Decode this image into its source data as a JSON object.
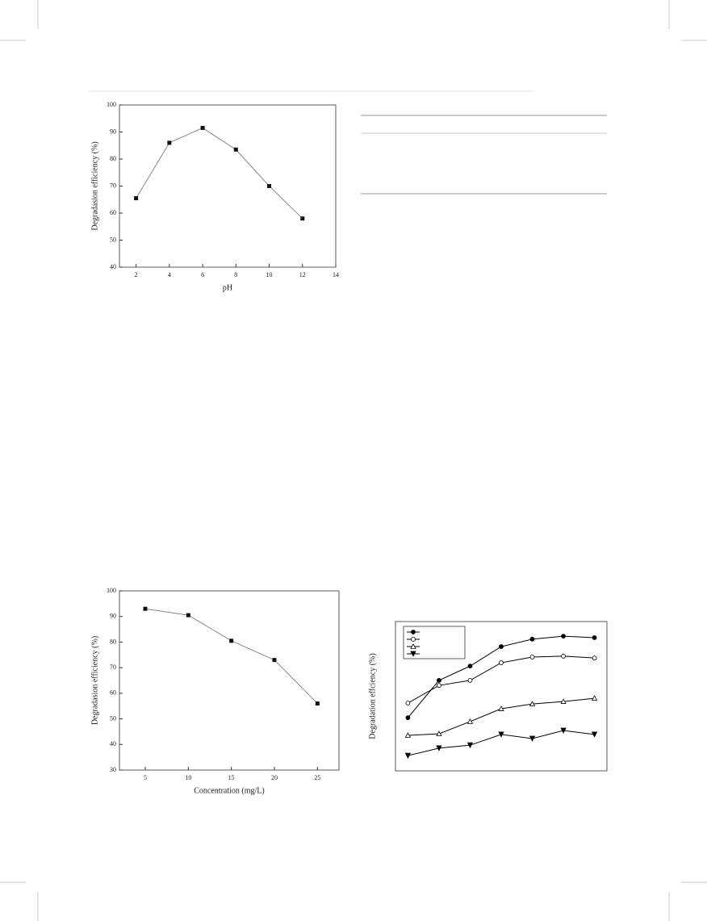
{
  "chart_data": [
    {
      "type": "line",
      "x_label": "pH",
      "y_label": "Degradasion efficiency (%)",
      "x": [
        2,
        4,
        6,
        8,
        10,
        12
      ],
      "values": [
        65.5,
        86,
        91.5,
        83.5,
        70,
        58
      ],
      "color": "#888888",
      "marker": "square",
      "xlim": [
        1,
        14
      ],
      "xticks": [
        2,
        4,
        6,
        8,
        10,
        12,
        14
      ],
      "ylim": [
        40,
        100
      ],
      "yticks": [
        40,
        50,
        60,
        70,
        80,
        90,
        100
      ]
    },
    {
      "type": "line",
      "x_label": "Concentration (mg/L)",
      "y_label": "Degradasion efficiency  (%)",
      "x": [
        5,
        10,
        15,
        20,
        25
      ],
      "values": [
        93,
        90.5,
        80.5,
        73,
        56
      ],
      "color": "#888888",
      "marker": "square",
      "xlim": [
        2,
        27.5
      ],
      "xticks": [
        5,
        10,
        15,
        20,
        25
      ],
      "ylim": [
        30,
        100
      ],
      "yticks": [
        30,
        40,
        50,
        60,
        70,
        80,
        90,
        100
      ]
    },
    {
      "type": "line",
      "y_label": "Degradation effciency (%)",
      "x": [
        1,
        2,
        3,
        4,
        5,
        6,
        7
      ],
      "xlim": [
        0.6,
        7.4
      ],
      "ylim": [
        0,
        5
      ],
      "series": [
        {
          "color": "#000000",
          "marker": "circle-filled",
          "values": [
            1.78,
            3.03,
            3.51,
            4.16,
            4.41,
            4.51,
            4.46
          ]
        },
        {
          "color": "#000000",
          "marker": "circle-open",
          "values": [
            2.27,
            2.86,
            3.03,
            3.62,
            3.81,
            3.84,
            3.78
          ]
        },
        {
          "color": "#000000",
          "marker": "triangle-open",
          "values": [
            1.19,
            1.24,
            1.65,
            2.08,
            2.24,
            2.32,
            2.43
          ]
        },
        {
          "color": "#000000",
          "marker": "triangle-down-filled",
          "values": [
            0.51,
            0.76,
            0.86,
            1.22,
            1.08,
            1.35,
            1.22
          ]
        }
      ]
    }
  ]
}
